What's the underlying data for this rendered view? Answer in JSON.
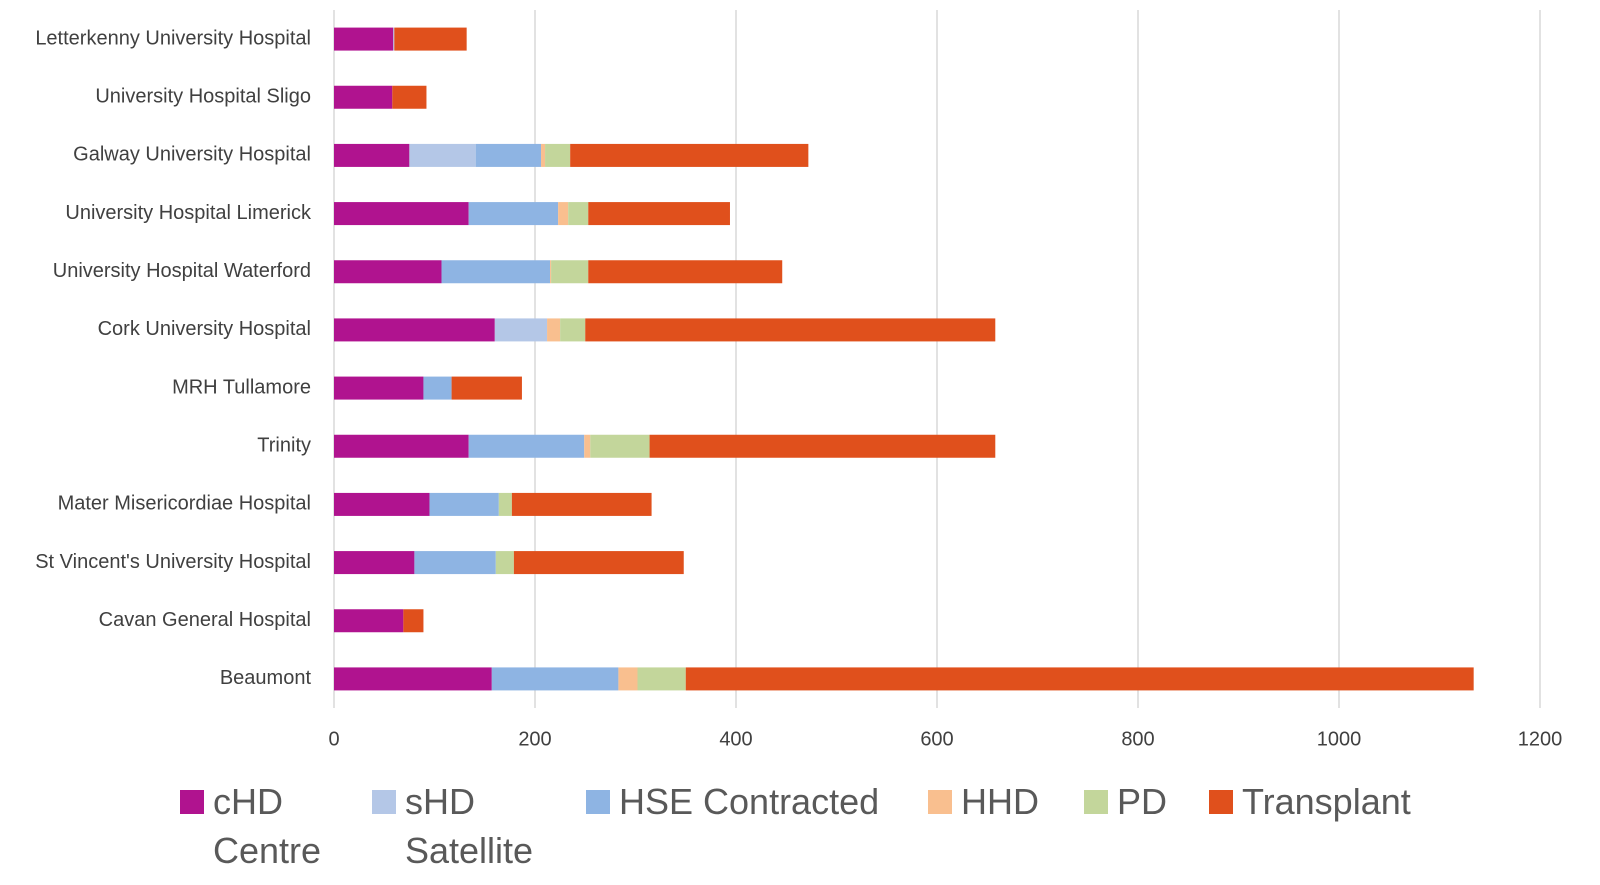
{
  "chart_data": {
    "type": "stacked-bar-horizontal",
    "categories": [
      "Letterkenny University Hospital",
      "University Hospital Sligo",
      "Galway University Hospital",
      "University Hospital Limerick",
      "University Hospital Waterford",
      "Cork University Hospital",
      "MRH Tullamore",
      "Trinity",
      "Mater Misericordiae Hospital",
      "St Vincent's University Hospital",
      "Cavan General Hospital",
      "Beaumont"
    ],
    "series": [
      {
        "name": "cHD Centre",
        "color": "#b0138f",
        "values": [
          59,
          58,
          75,
          134,
          107,
          160,
          89,
          134,
          95,
          80,
          69,
          157
        ]
      },
      {
        "name": "sHD Satellite",
        "color": "#b4c7e7",
        "values": [
          1,
          0,
          66,
          0,
          0,
          52,
          0,
          0,
          0,
          0,
          0,
          0
        ]
      },
      {
        "name": "HSE Contracted",
        "color": "#8eb4e3",
        "values": [
          0,
          0,
          65,
          89,
          108,
          0,
          28,
          115,
          69,
          81,
          0,
          126
        ]
      },
      {
        "name": "HHD",
        "color": "#f9bf8f",
        "values": [
          0,
          0,
          4,
          10,
          1,
          13,
          0,
          6,
          0,
          0,
          0,
          19
        ]
      },
      {
        "name": "PD",
        "color": "#c3d69b",
        "values": [
          0,
          0,
          25,
          20,
          37,
          25,
          0,
          59,
          13,
          18,
          0,
          48
        ]
      },
      {
        "name": "Transplant",
        "color": "#e0501c",
        "values": [
          72,
          34,
          237,
          141,
          193,
          408,
          70,
          344,
          139,
          169,
          20,
          784
        ]
      }
    ],
    "xlim": [
      0,
      1200
    ],
    "xticks": [
      0,
      200,
      400,
      600,
      800,
      1000,
      1200
    ],
    "grid": true,
    "legend": "bottom"
  }
}
